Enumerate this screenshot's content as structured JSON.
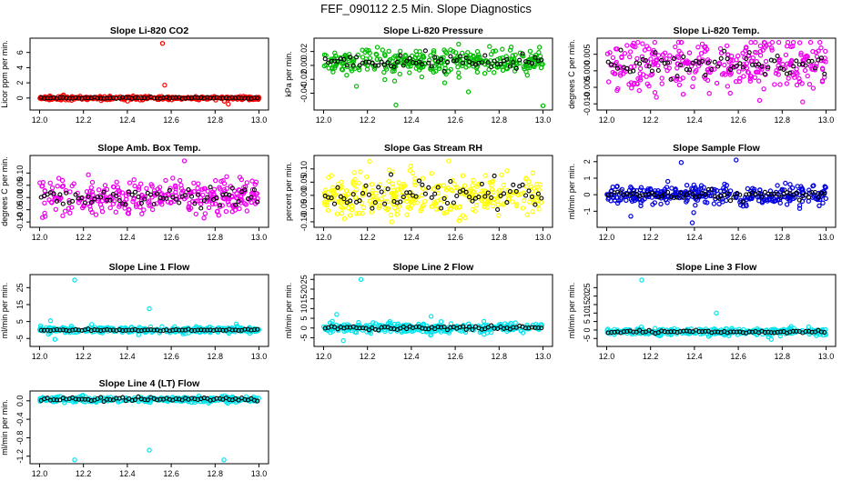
{
  "page": {
    "title": "FEF_090112  2.5 Min. Slope Diagnostics"
  },
  "chart_data": [
    {
      "type": "scatter",
      "title": "Slope Li-820 CO2",
      "ylabel": "Licor ppm per min.",
      "xlim": [
        12.0,
        13.0
      ],
      "ylim": [
        -1.2,
        7.5
      ],
      "yticks": [
        0,
        2,
        4,
        6
      ],
      "ytick_labels": [
        "0",
        "2",
        "4",
        "6"
      ],
      "xticks": [
        12.0,
        12.2,
        12.4,
        12.6,
        12.8,
        13.0
      ],
      "xtick_labels": [
        "12.0",
        "12.2",
        "12.4",
        "12.6",
        "12.8",
        "13.0"
      ],
      "color": "#ff0000",
      "center": 0.0,
      "spread": 0.12,
      "mean_spread": 0.05,
      "outliers": [
        [
          12.56,
          7.2
        ],
        [
          12.57,
          1.7
        ],
        [
          12.86,
          -0.8
        ]
      ],
      "n": 300
    },
    {
      "type": "scatter",
      "title": "Slope Li-820 Pressure",
      "ylabel": "kPa per min.",
      "xlim": [
        12.0,
        13.0
      ],
      "ylim": [
        -0.06,
        0.035
      ],
      "yticks": [
        -0.04,
        -0.02,
        0.0,
        0.02
      ],
      "ytick_labels": [
        "-0.04",
        "-0.02",
        "0.00",
        "0.02"
      ],
      "xticks": [
        12.0,
        12.2,
        12.4,
        12.6,
        12.8,
        13.0
      ],
      "xtick_labels": [
        "12.0",
        "12.2",
        "12.4",
        "12.6",
        "12.8",
        "13.0"
      ],
      "color": "#00bb00",
      "center": 0.005,
      "spread": 0.01,
      "mean_spread": 0.006,
      "outliers": [
        [
          12.33,
          -0.057
        ],
        [
          12.66,
          -0.038
        ],
        [
          13.0,
          -0.058
        ],
        [
          12.15,
          -0.03
        ]
      ],
      "n": 320
    },
    {
      "type": "scatter",
      "title": "Slope Li-820 Temp.",
      "ylabel": "degrees C per min.",
      "xlim": [
        12.0,
        13.0
      ],
      "ylim": [
        -0.011,
        0.009
      ],
      "yticks": [
        -0.01,
        -0.005,
        0.0,
        0.005
      ],
      "ytick_labels": [
        "-0.010",
        "-0.005",
        "0.000",
        "0.005"
      ],
      "xticks": [
        12.0,
        12.2,
        12.4,
        12.6,
        12.8,
        13.0
      ],
      "xtick_labels": [
        "12.0",
        "12.2",
        "12.4",
        "12.6",
        "12.8",
        "13.0"
      ],
      "color": "#ee00ee",
      "center": 0.002,
      "spread": 0.004,
      "mean_spread": 0.002,
      "outliers": [
        [
          12.88,
          0.0085
        ]
      ],
      "n": 320
    },
    {
      "type": "scatter",
      "title": "Slope Amb. Box Temp.",
      "ylabel": "degrees C per min.",
      "xlim": [
        12.0,
        13.0
      ],
      "ylim": [
        -0.11,
        0.16
      ],
      "yticks": [
        -0.1,
        -0.05,
        0.0,
        0.05,
        0.1
      ],
      "ytick_labels": [
        "-0.10",
        "-0.05",
        "0.00",
        "0.05",
        "0.10"
      ],
      "xticks": [
        12.0,
        12.2,
        12.4,
        12.6,
        12.8,
        13.0
      ],
      "xtick_labels": [
        "12.0",
        "12.2",
        "12.4",
        "12.6",
        "12.8",
        "13.0"
      ],
      "color": "#ee00ee",
      "center": 0.0,
      "spread": 0.035,
      "mean_spread": 0.02,
      "outliers": [
        [
          12.66,
          0.15
        ]
      ],
      "n": 320
    },
    {
      "type": "scatter",
      "title": "Slope Gas Stream RH",
      "ylabel": "percent per min.",
      "xlim": [
        12.0,
        13.0
      ],
      "ylim": [
        -0.11,
        0.14
      ],
      "yticks": [
        -0.1,
        -0.05,
        0.0,
        0.05,
        0.1
      ],
      "ytick_labels": [
        "-0.10",
        "-0.05",
        "0.00",
        "0.05",
        "0.10"
      ],
      "xticks": [
        12.0,
        12.2,
        12.4,
        12.6,
        12.8,
        13.0
      ],
      "xtick_labels": [
        "12.0",
        "12.2",
        "12.4",
        "12.6",
        "12.8",
        "13.0"
      ],
      "color": "#ffff00",
      "center": 0.0,
      "spread": 0.04,
      "mean_spread": 0.025,
      "outliers": [
        [
          12.57,
          0.13
        ],
        [
          12.31,
          -0.1
        ]
      ],
      "n": 320
    },
    {
      "type": "scatter",
      "title": "Slope Sample Flow",
      "ylabel": "ml/min per min.",
      "xlim": [
        12.0,
        13.0
      ],
      "ylim": [
        -1.8,
        2.2
      ],
      "yticks": [
        -1,
        0,
        1,
        2
      ],
      "ytick_labels": [
        "-1",
        "0",
        "1",
        "2"
      ],
      "xticks": [
        12.0,
        12.2,
        12.4,
        12.6,
        12.8,
        13.0
      ],
      "xtick_labels": [
        "12.0",
        "12.2",
        "12.4",
        "12.6",
        "12.8",
        "13.0"
      ],
      "color": "#0000dd",
      "center": 0.0,
      "spread": 0.3,
      "mean_spread": 0.12,
      "outliers": [
        [
          12.34,
          1.95
        ],
        [
          12.59,
          2.1
        ],
        [
          12.39,
          -1.7
        ],
        [
          12.11,
          -1.3
        ]
      ],
      "n": 320
    },
    {
      "type": "scatter",
      "title": "Slope Line 1 Flow",
      "ylabel": "ml/min per min.",
      "xlim": [
        12.0,
        13.0
      ],
      "ylim": [
        -8,
        31
      ],
      "yticks": [
        -5,
        5,
        15,
        25
      ],
      "ytick_labels": [
        "-5",
        "5",
        "15",
        "25"
      ],
      "xticks": [
        12.0,
        12.2,
        12.4,
        12.6,
        12.8,
        13.0
      ],
      "xtick_labels": [
        "12.0",
        "12.2",
        "12.4",
        "12.6",
        "12.8",
        "13.0"
      ],
      "color": "#00e5ee",
      "center": 0.0,
      "spread": 0.9,
      "mean_spread": 0.3,
      "outliers": [
        [
          12.16,
          29.5
        ],
        [
          12.5,
          12.5
        ],
        [
          12.05,
          5.5
        ],
        [
          12.07,
          -5.5
        ]
      ],
      "n": 320
    },
    {
      "type": "scatter",
      "title": "Slope Line 2 Flow",
      "ylabel": "ml/min per min.",
      "xlim": [
        12.0,
        13.0
      ],
      "ylim": [
        -8,
        26
      ],
      "yticks": [
        -5,
        0,
        5,
        10,
        15,
        20,
        25
      ],
      "ytick_labels": [
        "-5",
        "0",
        "5",
        "10",
        "15",
        "20",
        "25"
      ],
      "xticks": [
        12.0,
        12.2,
        12.4,
        12.6,
        12.8,
        13.0
      ],
      "xtick_labels": [
        "12.0",
        "12.2",
        "12.4",
        "12.6",
        "12.8",
        "13.0"
      ],
      "color": "#00e5ee",
      "center": 0.0,
      "spread": 1.2,
      "mean_spread": 0.6,
      "outliers": [
        [
          12.17,
          25
        ],
        [
          12.06,
          7
        ],
        [
          12.49,
          6
        ],
        [
          12.09,
          -6.5
        ],
        [
          12.04,
          3.5
        ]
      ],
      "n": 320
    },
    {
      "type": "scatter",
      "title": "Slope Line 3 Flow",
      "ylabel": "ml/min per min.",
      "xlim": [
        12.0,
        13.0
      ],
      "ylim": [
        -8,
        31
      ],
      "yticks": [
        -5,
        0,
        5,
        10,
        15,
        20,
        25
      ],
      "ytick_labels": [
        "-5",
        "0",
        "5",
        "10",
        "15",
        "20",
        "25"
      ],
      "xticks": [
        12.0,
        12.2,
        12.4,
        12.6,
        12.8,
        13.0
      ],
      "xtick_labels": [
        "12.0",
        "12.2",
        "12.4",
        "12.6",
        "12.8",
        "13.0"
      ],
      "color": "#00e5ee",
      "center": -1.0,
      "spread": 1.0,
      "mean_spread": 0.4,
      "outliers": [
        [
          12.16,
          29.5
        ],
        [
          12.5,
          10
        ],
        [
          12.75,
          -5.5
        ]
      ],
      "n": 320
    },
    {
      "type": "scatter",
      "title": "Slope Line 4 (LT) Flow",
      "ylabel": "ml/min per min.",
      "xlim": [
        12.0,
        13.0
      ],
      "ylim": [
        -1.3,
        0.15
      ],
      "yticks": [
        -1.2,
        -0.8,
        -0.4,
        0.0
      ],
      "ytick_labels": [
        "-1.2",
        "-0.8",
        "-0.4",
        "0.0"
      ],
      "xticks": [
        12.0,
        12.2,
        12.4,
        12.6,
        12.8,
        13.0
      ],
      "xtick_labels": [
        "12.0",
        "12.2",
        "12.4",
        "12.6",
        "12.8",
        "13.0"
      ],
      "color": "#00e5ee",
      "center": 0.03,
      "spread": 0.03,
      "mean_spread": 0.02,
      "outliers": [
        [
          12.16,
          -1.28
        ],
        [
          12.5,
          -1.07
        ],
        [
          12.84,
          -1.28
        ]
      ],
      "n": 320
    }
  ]
}
